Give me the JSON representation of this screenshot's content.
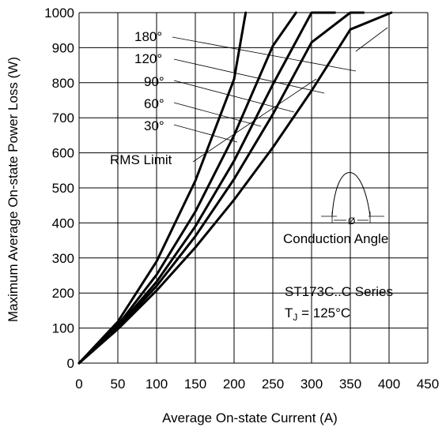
{
  "chart_data": {
    "type": "line",
    "title": "",
    "xlabel": "Average On-state Current (A)",
    "ylabel": "Maximum Average On-state Power Loss (W)",
    "xlim": [
      0,
      450
    ],
    "ylim": [
      0,
      1000
    ],
    "x_ticks": [
      0,
      50,
      100,
      150,
      200,
      250,
      300,
      350,
      400,
      450
    ],
    "y_ticks": [
      0,
      100,
      200,
      300,
      400,
      500,
      600,
      700,
      800,
      900,
      1000
    ],
    "grid": true,
    "series": [
      {
        "name": "180°",
        "x": [
          0,
          50,
          100,
          150,
          200,
          250,
          300,
          350,
          403
        ],
        "y": [
          0,
          97,
          207,
          330,
          466,
          615,
          777,
          952,
          1000
        ]
      },
      {
        "name": "120°",
        "x": [
          0,
          50,
          100,
          150,
          200,
          250,
          300,
          350,
          367
        ],
        "y": [
          0,
          100,
          220,
          362,
          525,
          710,
          915,
          1000,
          1000
        ]
      },
      {
        "name": "90°",
        "x": [
          0,
          50,
          100,
          150,
          200,
          250,
          300,
          330
        ],
        "y": [
          0,
          103,
          232,
          390,
          577,
          795,
          1000,
          1000
        ]
      },
      {
        "name": "60°",
        "x": [
          0,
          50,
          100,
          150,
          200,
          250,
          280
        ],
        "y": [
          0,
          108,
          252,
          432,
          650,
          905,
          1000
        ]
      },
      {
        "name": "30°",
        "x": [
          0,
          50,
          100,
          150,
          200,
          215
        ],
        "y": [
          0,
          118,
          290,
          520,
          810,
          1000
        ]
      }
    ],
    "annotations": {
      "rms_limit": "RMS Limit",
      "conduction_angle": "Conduction Angle",
      "phi": "Ø",
      "series_label": "ST173C..C Series",
      "tj_label_prefix": "T",
      "tj_subscript": "J",
      "tj_label_suffix": " = 125°C"
    }
  }
}
